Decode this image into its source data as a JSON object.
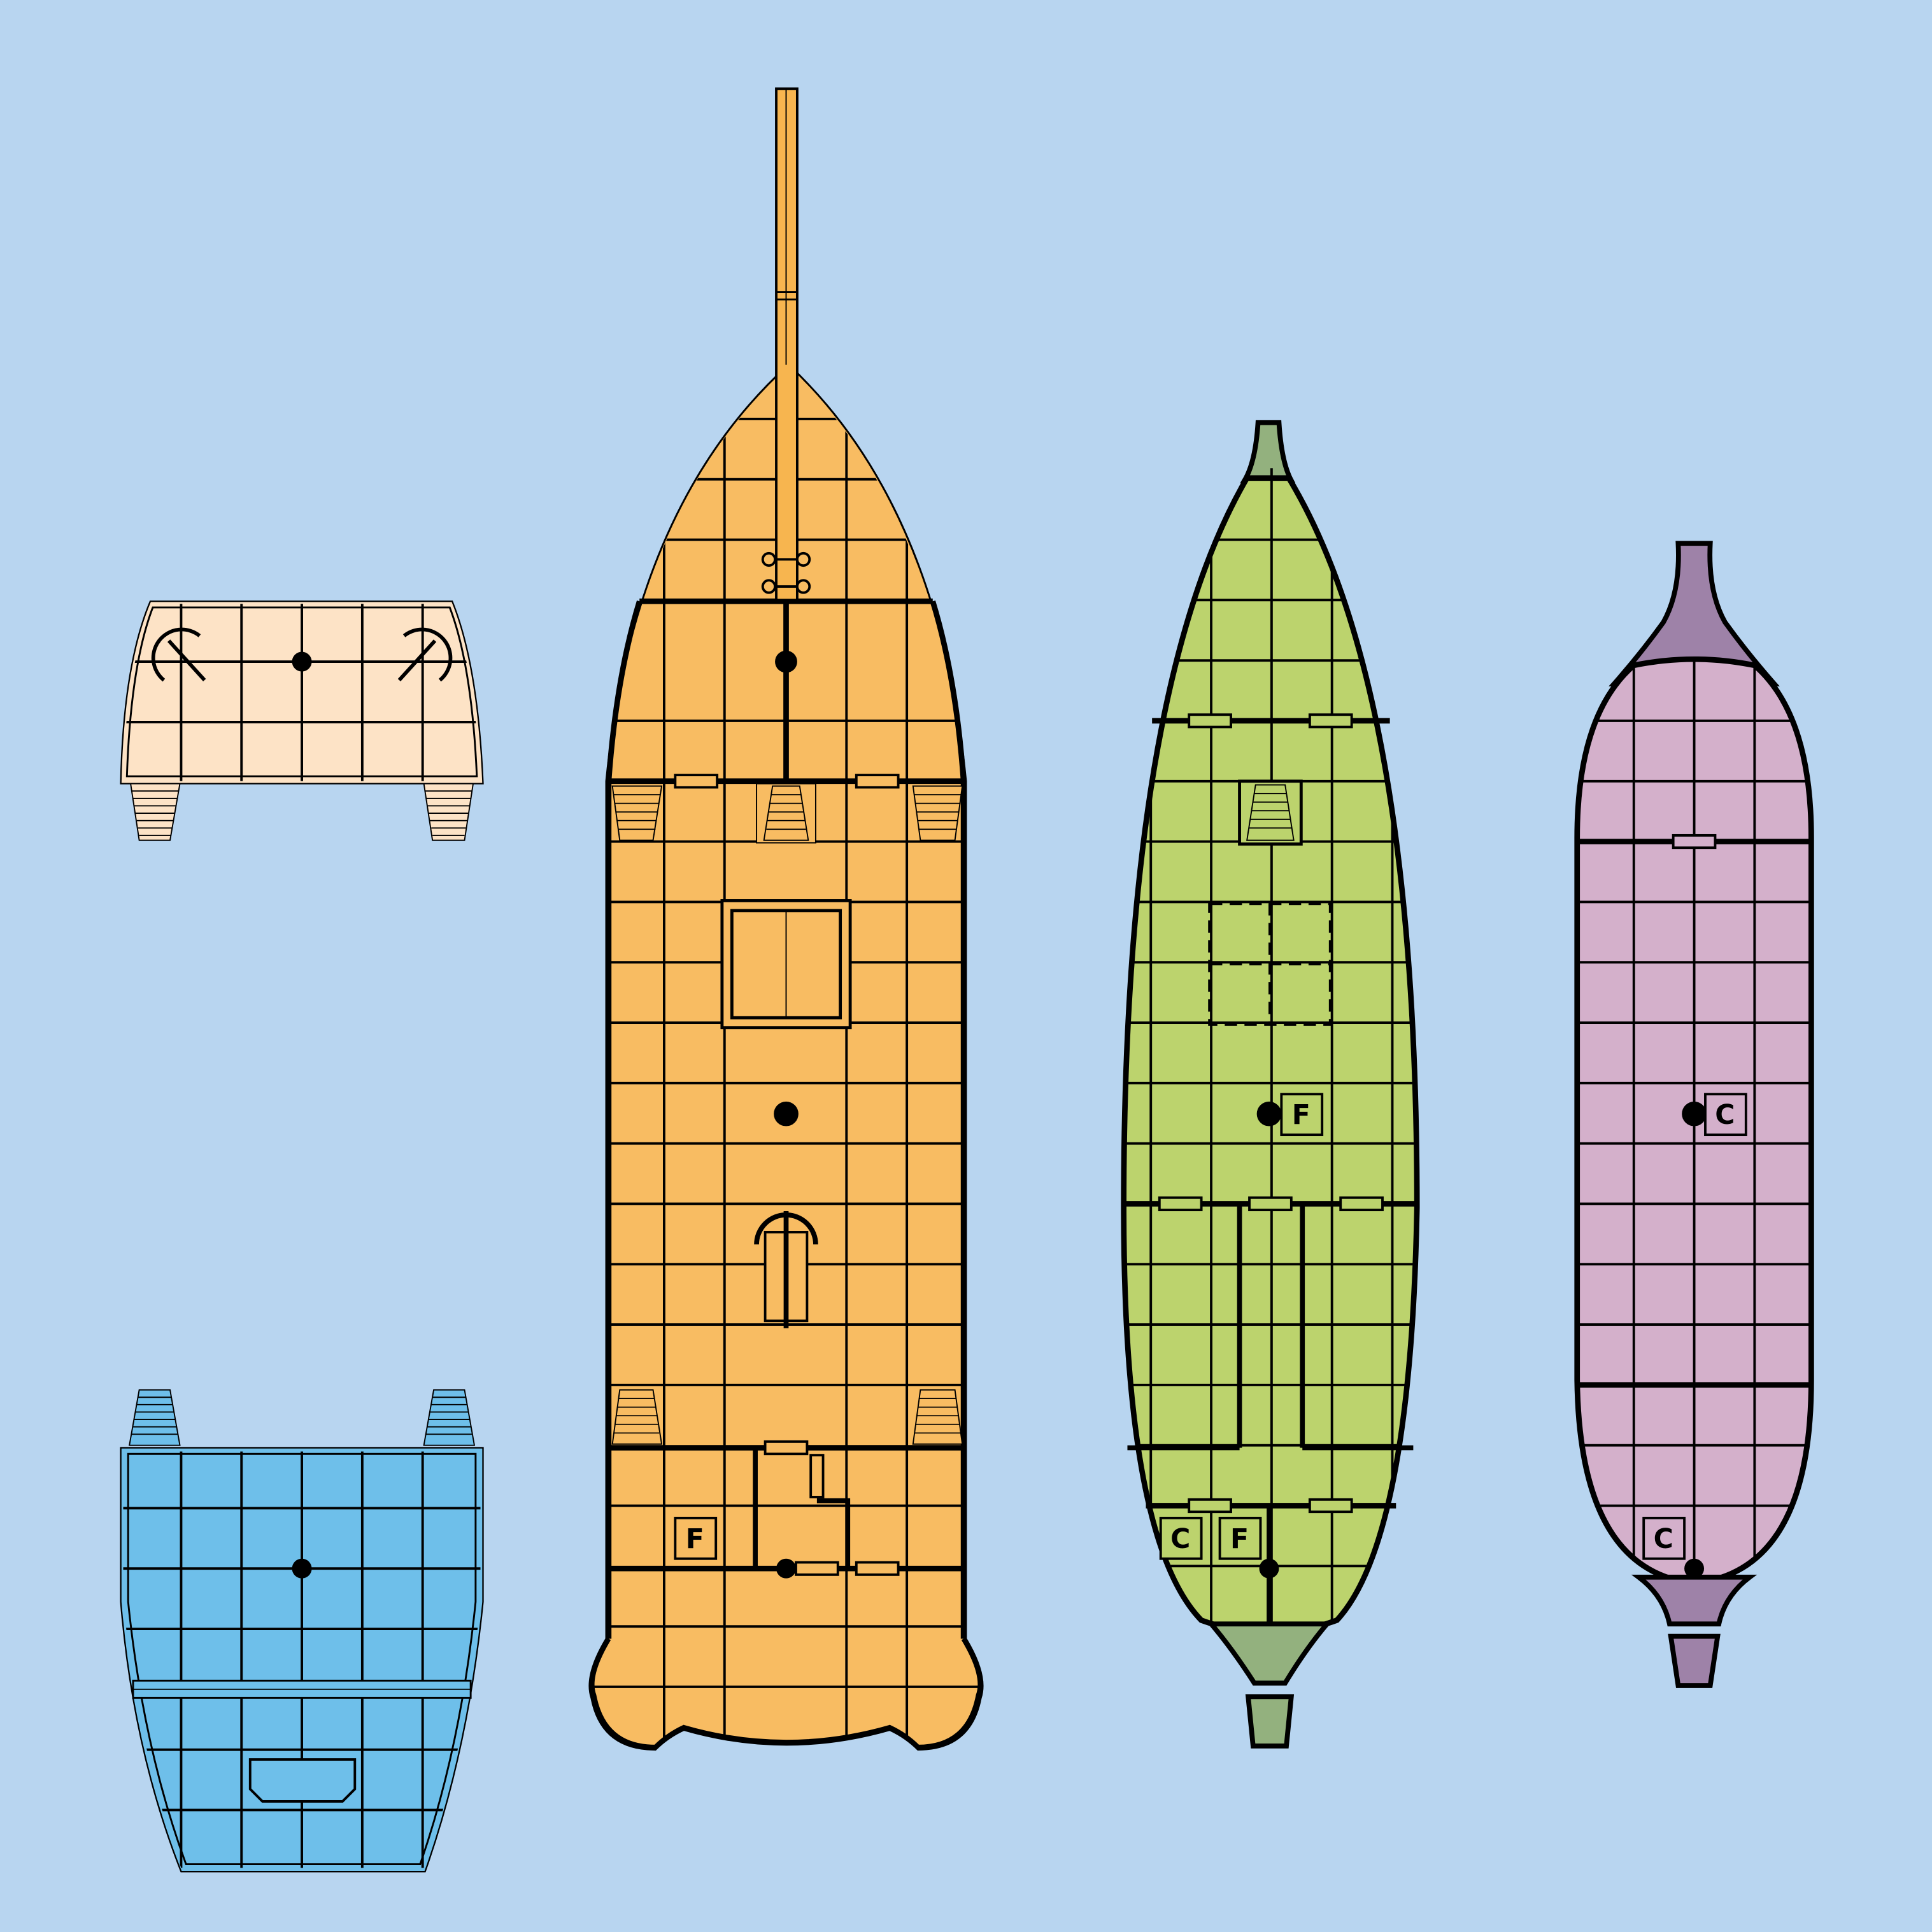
{
  "background_color": "#b8d5f0",
  "ships": [
    {
      "id": "stern-section",
      "fill": "#fde3c6"
    },
    {
      "id": "bow-section",
      "fill": "#6ebfea"
    },
    {
      "id": "galleon",
      "fill": "#f8bc62",
      "mast_fill": "#f7b54f",
      "markers": [
        {
          "text": "F"
        }
      ]
    },
    {
      "id": "longship",
      "fill": "#bcd36d",
      "prow_fill": "#93b17e",
      "markers": [
        {
          "text": "F"
        },
        {
          "text": "C"
        },
        {
          "text": "F"
        }
      ]
    },
    {
      "id": "barge",
      "fill": "#d4b0cb",
      "prow_fill": "#9e82a8",
      "markers": [
        {
          "text": "C"
        },
        {
          "text": "C"
        }
      ]
    }
  ]
}
